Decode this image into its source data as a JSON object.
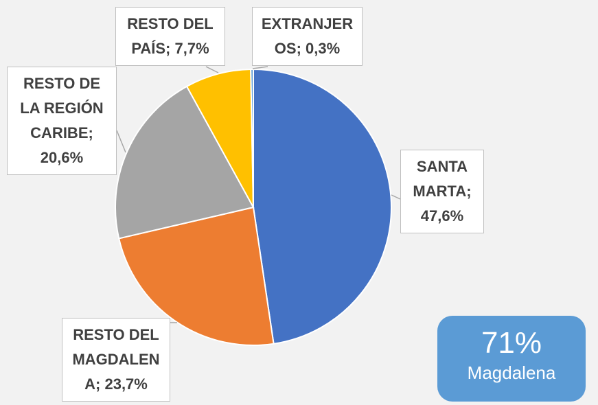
{
  "chart_data": {
    "type": "pie",
    "categories": [
      "SANTA MARTA",
      "RESTO DEL MAGDALENA",
      "RESTO DE LA REGIÓN CARIBE",
      "RESTO DEL PAÍS",
      "EXTRANJEROS"
    ],
    "values": [
      47.6,
      23.7,
      20.6,
      7.7,
      0.3
    ],
    "value_labels": [
      "47,6%",
      "23,7%",
      "20,6%",
      "7,7%",
      "0,3%"
    ],
    "label_separator": "; ",
    "colors": [
      "#4472c4",
      "#ed7d31",
      "#a5a5a5",
      "#ffc000",
      "#5b9bd5"
    ],
    "annotation": {
      "value": "71%",
      "label": "Magdalena"
    }
  }
}
